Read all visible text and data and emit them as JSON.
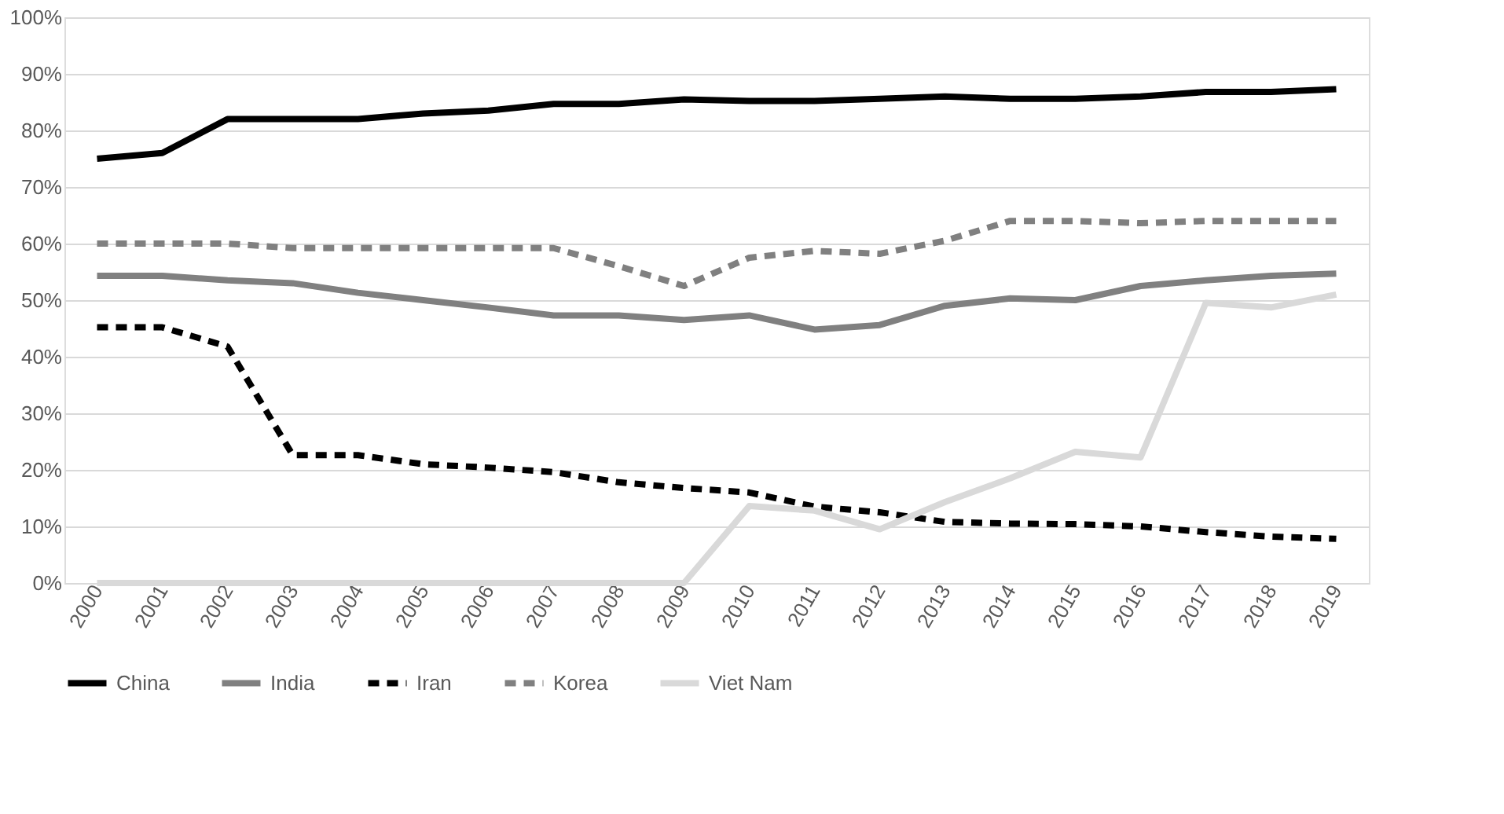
{
  "chart_data": {
    "type": "line",
    "categories": [
      "2000",
      "2001",
      "2002",
      "2003",
      "2004",
      "2005",
      "2006",
      "2007",
      "2008",
      "2009",
      "2010",
      "2011",
      "2012",
      "2013",
      "2014",
      "2015",
      "2016",
      "2017",
      "2018",
      "2019"
    ],
    "series": [
      {
        "name": "China",
        "color": "#000000",
        "line_style": "solid",
        "values": [
          75,
          76,
          82,
          82,
          82,
          83,
          83.5,
          84.7,
          84.7,
          85.5,
          85.2,
          85.2,
          85.6,
          86,
          85.6,
          85.6,
          86,
          86.8,
          86.8,
          87.3
        ]
      },
      {
        "name": "India",
        "color": "#808080",
        "line_style": "solid",
        "values": [
          54.3,
          54.3,
          53.5,
          53,
          51.3,
          50,
          48.7,
          47.3,
          47.3,
          46.5,
          47.3,
          44.8,
          45.6,
          49,
          50.3,
          50,
          52.5,
          53.5,
          54.3,
          54.7
        ]
      },
      {
        "name": "Iran",
        "color": "#000000",
        "line_style": "dashed",
        "values": [
          45.2,
          45.2,
          41.8,
          22.6,
          22.6,
          21,
          20.4,
          19.6,
          17.8,
          16.8,
          16,
          13.5,
          12.5,
          10.8,
          10.5,
          10.4,
          10,
          9,
          8.2,
          7.8
        ]
      },
      {
        "name": "Korea",
        "color": "#808080",
        "line_style": "dashed",
        "values": [
          60,
          60,
          60,
          59.2,
          59.2,
          59.2,
          59.2,
          59.2,
          56,
          52.5,
          57.5,
          58.7,
          58.2,
          60.5,
          64,
          64,
          63.6,
          64,
          64,
          64
        ]
      },
      {
        "name": "Viet Nam",
        "color": "#d9d9d9",
        "line_style": "solid",
        "values": [
          0,
          0,
          0,
          0,
          0,
          0,
          0,
          0,
          0,
          0,
          13.6,
          12.8,
          9.5,
          14.3,
          18.5,
          23.2,
          22.2,
          49.5,
          48.7,
          51
        ]
      }
    ],
    "ylim": [
      0,
      100
    ],
    "yticks": [
      {
        "value": 0,
        "label": "0%"
      },
      {
        "value": 10,
        "label": "10%"
      },
      {
        "value": 20,
        "label": "20%"
      },
      {
        "value": 30,
        "label": "30%"
      },
      {
        "value": 40,
        "label": "40%"
      },
      {
        "value": 50,
        "label": "50%"
      },
      {
        "value": 60,
        "label": "60%"
      },
      {
        "value": 70,
        "label": "70%"
      },
      {
        "value": 80,
        "label": "80%"
      },
      {
        "value": 90,
        "label": "90%"
      },
      {
        "value": 100,
        "label": "100%"
      }
    ],
    "grid": "y",
    "legend": "bottom",
    "marker": "none"
  }
}
